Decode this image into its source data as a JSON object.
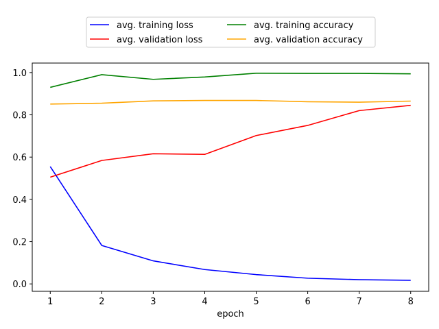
{
  "chart_data": {
    "type": "line",
    "title": "",
    "xlabel": "epoch",
    "ylabel": "",
    "x": [
      1,
      2,
      3,
      4,
      5,
      6,
      7,
      8
    ],
    "xlim": [
      0.65,
      8.35
    ],
    "ylim": [
      -0.035,
      1.045
    ],
    "xticks": [
      1,
      2,
      3,
      4,
      5,
      6,
      7,
      8
    ],
    "yticks": [
      0.0,
      0.2,
      0.4,
      0.6,
      0.8,
      1.0
    ],
    "ytick_labels": [
      "0.0",
      "0.2",
      "0.4",
      "0.6",
      "0.8",
      "1.0"
    ],
    "grid": false,
    "legend_position": "top-center, outside plot, 2 columns",
    "series": [
      {
        "name": "avg. training loss",
        "color": "#0000ff",
        "values": [
          0.555,
          0.182,
          0.109,
          0.068,
          0.044,
          0.027,
          0.02,
          0.017
        ]
      },
      {
        "name": "avg. validation loss",
        "color": "#ff0000",
        "values": [
          0.505,
          0.584,
          0.616,
          0.613,
          0.702,
          0.75,
          0.82,
          0.845
        ]
      },
      {
        "name": "avg. training accuracy",
        "color": "#008000",
        "values": [
          0.93,
          0.99,
          0.968,
          0.979,
          0.997,
          0.996,
          0.996,
          0.994
        ]
      },
      {
        "name": "avg. validation accuracy",
        "color": "#ffa500",
        "values": [
          0.851,
          0.855,
          0.866,
          0.868,
          0.868,
          0.862,
          0.86,
          0.865
        ]
      }
    ]
  }
}
